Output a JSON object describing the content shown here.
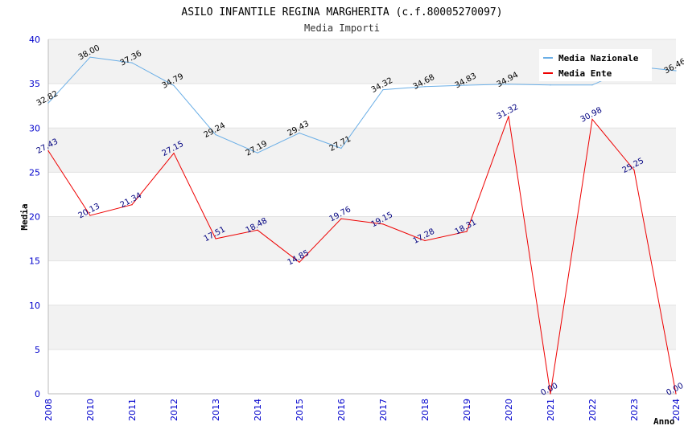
{
  "chart_data": {
    "type": "line",
    "title": "ASILO INFANTILE REGINA MARGHERITA (c.f.80005270097)",
    "subtitle": "Media Importi",
    "xlabel": "Anno",
    "ylabel": "Media",
    "ylim": [
      0,
      40
    ],
    "yticks": [
      0,
      5,
      10,
      15,
      20,
      25,
      30,
      35,
      40
    ],
    "grid": true,
    "legend_position": "top-right",
    "categories": [
      "2008",
      "2010",
      "2011",
      "2012",
      "2013",
      "2014",
      "2015",
      "2016",
      "2017",
      "2018",
      "2019",
      "2020",
      "2021",
      "2022",
      "2023",
      "2024"
    ],
    "series": [
      {
        "name": "Media Nazionale",
        "color": "#6aaee6",
        "values": [
          32.82,
          38.0,
          37.36,
          34.79,
          29.24,
          27.19,
          29.43,
          27.71,
          34.32,
          34.68,
          34.83,
          34.94,
          34.85,
          34.85,
          36.95,
          36.46
        ],
        "labels": [
          "32.82",
          "38.00",
          "37.36",
          "34.79",
          "29.24",
          "27.19",
          "29.43",
          "27.71",
          "34.32",
          "34.68",
          "34.83",
          "34.94",
          "",
          "",
          "",
          "36.46"
        ]
      },
      {
        "name": "Media Ente",
        "color": "#ee0000",
        "values": [
          27.43,
          20.13,
          21.34,
          27.15,
          17.51,
          18.48,
          14.85,
          19.76,
          19.15,
          17.28,
          18.31,
          31.32,
          0.0,
          30.98,
          25.25,
          0.0
        ],
        "labels": [
          "27.43",
          "20.13",
          "21.34",
          "27.15",
          "17.51",
          "18.48",
          "14.85",
          "19.76",
          "19.15",
          "17.28",
          "18.31",
          "31.32",
          "0.00",
          "30.98",
          "25.25",
          "0.00"
        ]
      }
    ]
  }
}
